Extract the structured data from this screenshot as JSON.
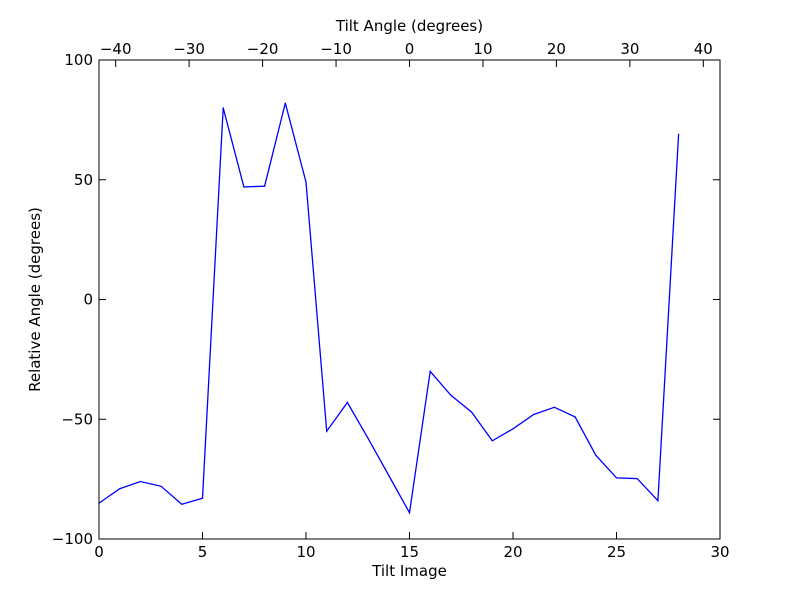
{
  "chart_data": {
    "type": "line",
    "title": "",
    "xlabel": "Tilt Image",
    "ylabel": "Relative Angle (degrees)",
    "x2label": "Tilt Angle (degrees)",
    "xlim": [
      0,
      30
    ],
    "ylim": [
      -100,
      100
    ],
    "x2lim": [
      -42.27,
      42.27
    ],
    "grid": false,
    "xticks": [
      0,
      5,
      10,
      15,
      20,
      25,
      30
    ],
    "xtick_labels": [
      "0",
      "5",
      "10",
      "15",
      "20",
      "25",
      "30"
    ],
    "yticks": [
      -100,
      -50,
      0,
      50,
      100
    ],
    "ytick_labels": [
      "−100",
      "−50",
      "0",
      "50",
      "100"
    ],
    "x2ticks": [
      -40,
      -30,
      -20,
      -10,
      0,
      10,
      20,
      30,
      40
    ],
    "x2tick_labels": [
      "−40",
      "−30",
      "−20",
      "−10",
      "0",
      "10",
      "20",
      "30",
      "40"
    ],
    "series": [
      {
        "color": "#0000ff",
        "x": [
          0,
          1,
          2,
          3,
          4,
          5,
          6,
          7,
          8,
          9,
          10,
          11,
          12,
          13,
          14,
          15,
          16,
          17,
          18,
          19,
          20,
          21,
          22,
          23,
          24,
          25,
          26,
          27,
          28
        ],
        "y": [
          -85,
          -79,
          -76,
          -78,
          -85.5,
          -83,
          80,
          47,
          47.3,
          82,
          49,
          -55,
          -43,
          -58,
          -73.5,
          -89,
          -30,
          -40,
          -47,
          -59,
          -54,
          -48,
          -45,
          -49,
          -65,
          -74.5,
          -74.8,
          -84,
          69
        ]
      }
    ]
  }
}
